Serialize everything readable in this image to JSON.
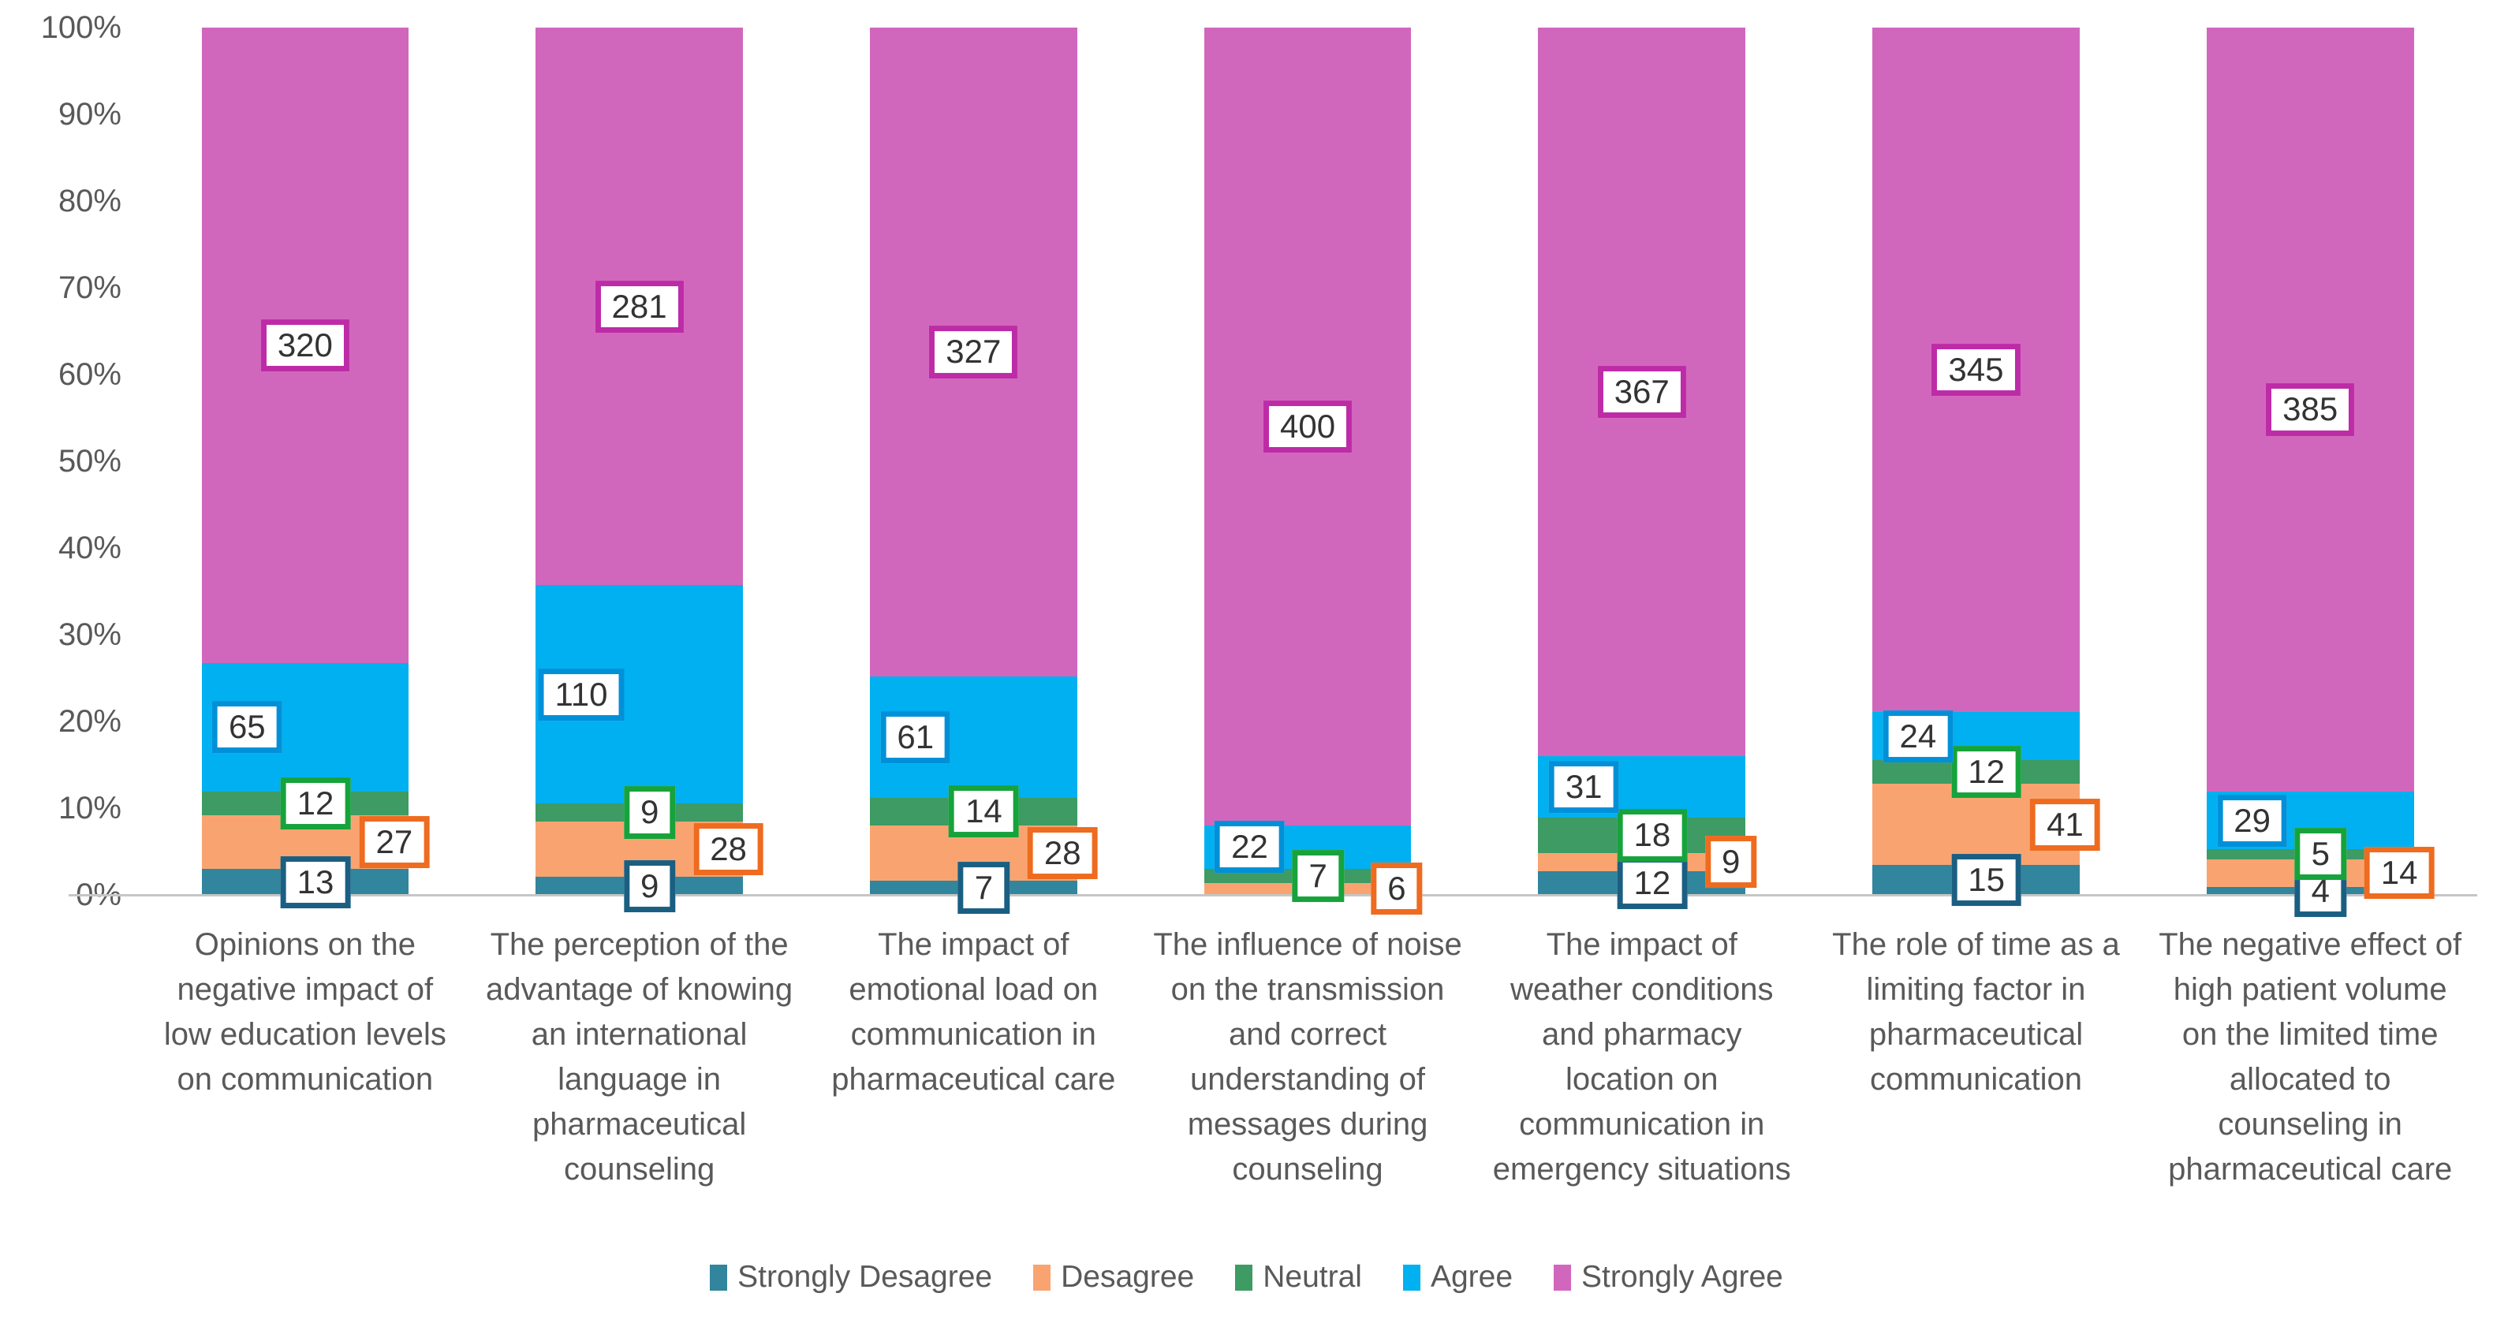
{
  "chart_data": {
    "type": "bar",
    "stacking": "percent_100",
    "orientation": "vertical",
    "title": "",
    "xlabel": "",
    "ylabel": "",
    "grid": false,
    "legend_position": "bottom",
    "ylim": [
      0,
      100
    ],
    "y_tick_labels": [
      "0%",
      "10%",
      "20%",
      "30%",
      "40%",
      "50%",
      "60%",
      "70%",
      "80%",
      "90%",
      "100%"
    ],
    "categories": [
      [
        "Opinions on the",
        "negative impact of",
        "low education levels",
        "on communication"
      ],
      [
        "The perception of the",
        "advantage of knowing",
        "an international",
        "language in",
        "pharmaceutical",
        "counseling"
      ],
      [
        "The impact of",
        "emotional load on",
        "communication in",
        "pharmaceutical care"
      ],
      [
        "The influence of noise",
        "on the transmission",
        "and correct",
        "understanding of",
        "messages during",
        "counseling"
      ],
      [
        "The impact of",
        "weather conditions",
        "and pharmacy",
        "location on",
        "communication in",
        "emergency situations"
      ],
      [
        "The role of time as a",
        "limiting factor in",
        "pharmaceutical",
        "communication"
      ],
      [
        "The negative effect of",
        "high patient volume",
        "on the limited time",
        "allocated to",
        "counseling in",
        "pharmaceutical care"
      ]
    ],
    "series": [
      {
        "name": "Strongly Desagree",
        "color": "#31859C",
        "label_border_color": "#1A5F82",
        "values": [
          13,
          9,
          7,
          0,
          12,
          15,
          4
        ],
        "data_labels": [
          "13",
          "9",
          "7",
          "",
          "12",
          "15",
          "4"
        ]
      },
      {
        "name": "Desagree",
        "color": "#F9A470",
        "label_border_color": "#EE6B1F",
        "values": [
          27,
          28,
          28,
          6,
          9,
          41,
          14
        ],
        "data_labels": [
          "27",
          "28",
          "28",
          "6",
          "9",
          "41",
          "14"
        ]
      },
      {
        "name": "Neutral",
        "color": "#3D9B63",
        "label_border_color": "#17A33B",
        "values": [
          12,
          9,
          14,
          7,
          18,
          12,
          5
        ],
        "data_labels": [
          "12",
          "9",
          "14",
          "7",
          "18",
          "12",
          "5"
        ]
      },
      {
        "name": "Agree",
        "color": "#00B0F0",
        "label_border_color": "#0090D8",
        "values": [
          65,
          110,
          61,
          22,
          31,
          24,
          29
        ],
        "data_labels": [
          "65",
          "110",
          "61",
          "22",
          "31",
          "24",
          "29"
        ]
      },
      {
        "name": "Strongly Agree",
        "color": "#D167BD",
        "label_border_color": "#BD2BA7",
        "values": [
          320,
          281,
          327,
          400,
          367,
          345,
          385
        ],
        "data_labels": [
          "320",
          "281",
          "327",
          "400",
          "367",
          "345",
          "385"
        ]
      }
    ],
    "text_color": "#595959",
    "axis_line_color": "#C6C6C6"
  }
}
